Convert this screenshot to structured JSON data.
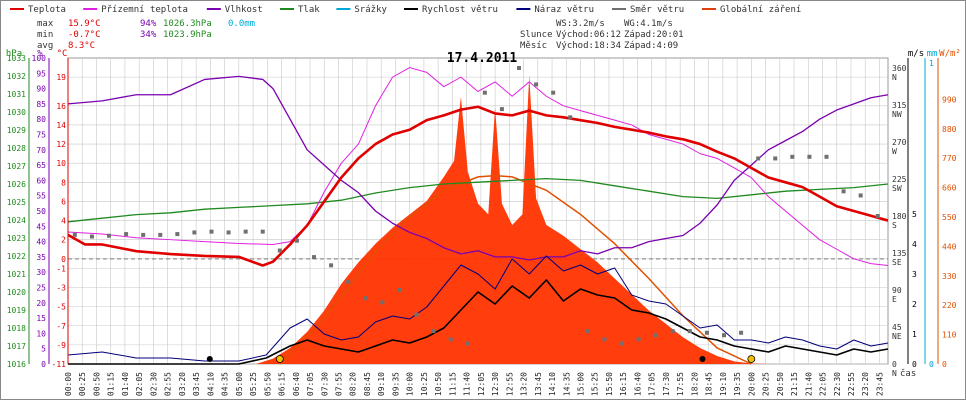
{
  "legend": [
    {
      "label": "Teplota",
      "color": "#e00000"
    },
    {
      "label": "Přízemní teplota",
      "color": "#e020e0"
    },
    {
      "label": "Vlhkost",
      "color": "#7a00b0"
    },
    {
      "label": "Tlak",
      "color": "#208a20"
    },
    {
      "label": "Srážky",
      "color": "#00a8d8"
    },
    {
      "label": "Rychlost větru",
      "color": "#000000"
    },
    {
      "label": "Náraz větru",
      "color": "#00007a"
    },
    {
      "label": "Směr větru",
      "color": "#707070"
    },
    {
      "label": "Globální záření",
      "color": "#e04010"
    }
  ],
  "stats": {
    "max_label": "max",
    "max_temp": "15.9°C",
    "max_hum": "94%",
    "max_press": "1026.3hPa",
    "rain": "0.0mm",
    "min_label": "min",
    "min_temp": "-0.7°C",
    "min_hum": "34%",
    "min_press": "1023.9hPa",
    "avg_label": "avg",
    "avg_temp": "8.3°C"
  },
  "wind_info": {
    "ws": "WS:3.2m/s",
    "wg": "WG:4.1m/s"
  },
  "sun": {
    "label": "Slunce",
    "rise": "Východ:06:12",
    "set": "Západ:20:01"
  },
  "moon": {
    "label": "Měsíc",
    "rise": "Východ:18:34",
    "set": "Západ:4:09"
  },
  "date_title": "17.4.2011",
  "axis_units": {
    "hpa": "hPa",
    "pct": "%",
    "degc": "°C",
    "ms": "m/s",
    "mm": "mm",
    "wm2": "W/m²",
    "time": "čas"
  },
  "colors": {
    "temp": "#e00000",
    "ground": "#e020e0",
    "hum": "#7a00b0",
    "press": "#208a20",
    "rain": "#00a8d8",
    "wind": "#000000",
    "gust": "#00007a",
    "dir": "#707070",
    "solar": "#ff3300",
    "solar_model": "#e05000",
    "grid": "#c8c8c8"
  },
  "chart_data": {
    "type": "line",
    "title": "17.4.2011",
    "x_time_labels": [
      "00:00",
      "00:25",
      "00:50",
      "01:15",
      "01:40",
      "02:05",
      "02:30",
      "02:55",
      "03:20",
      "03:45",
      "04:10",
      "04:35",
      "05:00",
      "05:25",
      "05:50",
      "06:15",
      "06:40",
      "07:05",
      "07:30",
      "07:55",
      "08:20",
      "08:45",
      "09:10",
      "09:35",
      "10:00",
      "10:25",
      "10:50",
      "11:15",
      "11:40",
      "12:05",
      "12:30",
      "12:55",
      "13:20",
      "13:45",
      "14:10",
      "14:35",
      "15:00",
      "15:25",
      "15:50",
      "16:15",
      "16:40",
      "17:05",
      "17:30",
      "17:55",
      "18:20",
      "18:45",
      "19:10",
      "19:35",
      "20:00",
      "20:25",
      "20:50",
      "21:15",
      "21:40",
      "22:05",
      "22:30",
      "22:55",
      "23:20",
      "23:45"
    ],
    "axes": {
      "pressure_hpa": {
        "range": [
          1016,
          1033
        ],
        "ticks": [
          1016,
          1017,
          1018,
          1019,
          1020,
          1021,
          1022,
          1023,
          1024,
          1025,
          1026,
          1027,
          1028,
          1029,
          1030,
          1031,
          1032,
          1033
        ]
      },
      "humidity_pct": {
        "range": [
          0,
          100
        ],
        "ticks": [
          0,
          5,
          10,
          15,
          20,
          25,
          30,
          35,
          40,
          45,
          50,
          55,
          60,
          65,
          70,
          75,
          80,
          85,
          90,
          95,
          100
        ]
      },
      "temperature_c": {
        "range": [
          -11,
          21
        ],
        "ticks": [
          -11,
          -9,
          -7,
          -5,
          -3,
          -1,
          0,
          2,
          4,
          6,
          8,
          10,
          12,
          14,
          16,
          19
        ]
      },
      "wind_dir_deg": {
        "ticks": [
          {
            "v": 0,
            "l": "0"
          },
          {
            "v": 45,
            "l": "45"
          },
          {
            "v": 90,
            "l": "90"
          },
          {
            "v": 135,
            "l": "135"
          },
          {
            "v": 180,
            "l": "180"
          },
          {
            "v": 225,
            "l": "225"
          },
          {
            "v": 270,
            "l": "270"
          },
          {
            "v": 315,
            "l": "315"
          },
          {
            "v": 360,
            "l": "360"
          }
        ],
        "compass": [
          "N",
          "NE",
          "E",
          "SE",
          "S",
          "SW",
          "W",
          "NW",
          "N"
        ]
      },
      "wind_ms": {
        "range": [
          0,
          5
        ],
        "ticks": [
          0,
          1,
          2,
          3,
          4,
          5
        ]
      },
      "rain_mm": {
        "ticks": [
          0,
          1
        ]
      },
      "solar_wm2": {
        "range": [
          0,
          1100
        ],
        "ticks": [
          0,
          110,
          220,
          330,
          440,
          550,
          660,
          770,
          880,
          990
        ]
      }
    },
    "series": [
      {
        "name": "Teplota",
        "unit": "°C",
        "x_hours": [
          0,
          0.5,
          1,
          2,
          3,
          4,
          5,
          5.7,
          6,
          6.5,
          7,
          7.5,
          8,
          8.5,
          9,
          9.5,
          10,
          10.5,
          11,
          11.5,
          12,
          12.5,
          13,
          13.5,
          14,
          14.5,
          15,
          15.5,
          16,
          16.5,
          17,
          17.5,
          18,
          18.5,
          19,
          19.5,
          20,
          20.5,
          21,
          21.5,
          22,
          22.5,
          23,
          23.5,
          24
        ],
        "values": [
          2.5,
          1.5,
          1.5,
          0.8,
          0.5,
          0.3,
          0.2,
          -0.7,
          -0.3,
          1.5,
          3.5,
          6.0,
          8.5,
          10.5,
          12.0,
          13.0,
          13.5,
          14.5,
          15.0,
          15.6,
          15.9,
          15.2,
          15.0,
          15.5,
          15.0,
          14.8,
          14.5,
          14.2,
          13.8,
          13.5,
          13.2,
          12.8,
          12.5,
          12.0,
          11.2,
          10.5,
          9.5,
          8.5,
          8.0,
          7.5,
          6.5,
          5.5,
          5.0,
          4.5,
          4.0
        ]
      },
      {
        "name": "Přízemní teplota",
        "unit": "°C",
        "x_hours": [
          0,
          1,
          2,
          3,
          4,
          5,
          6,
          6.5,
          7,
          7.5,
          8,
          8.5,
          9,
          9.5,
          10,
          10.5,
          11,
          11.5,
          12,
          12.5,
          13,
          13.5,
          14,
          14.5,
          15,
          15.5,
          16,
          16.5,
          17,
          17.5,
          18,
          18.5,
          19,
          19.5,
          20,
          20.5,
          21,
          21.5,
          22,
          22.5,
          23,
          23.5,
          24
        ],
        "values": [
          2.8,
          2.6,
          2.2,
          2.0,
          1.8,
          1.6,
          1.5,
          1.8,
          3.5,
          7.0,
          10.0,
          12.0,
          16.0,
          19.0,
          20.0,
          19.5,
          18.0,
          19.0,
          17.5,
          18.5,
          17.0,
          18.5,
          17.0,
          16.0,
          15.5,
          15.0,
          14.5,
          14.0,
          13.0,
          12.5,
          12.0,
          11.0,
          10.5,
          9.5,
          8.5,
          6.5,
          5.0,
          3.5,
          2.0,
          1.0,
          0.0,
          -0.5,
          -0.7
        ]
      },
      {
        "name": "Vlhkost",
        "unit": "%",
        "x_hours": [
          0,
          1,
          2,
          3,
          4,
          5,
          5.7,
          6,
          6.5,
          7,
          7.5,
          8,
          8.5,
          9,
          9.5,
          10,
          10.5,
          11,
          11.5,
          12,
          12.5,
          13,
          13.5,
          14,
          14.5,
          15,
          15.5,
          16,
          16.5,
          17,
          17.5,
          18,
          18.5,
          19,
          19.5,
          20,
          20.5,
          21,
          21.5,
          22,
          22.5,
          23,
          23.5,
          24
        ],
        "values": [
          85,
          86,
          88,
          88,
          93,
          94,
          93,
          90,
          80,
          70,
          65,
          60,
          56,
          50,
          46,
          43,
          41,
          38,
          36,
          37,
          35,
          35,
          34,
          35,
          35,
          37,
          36,
          38,
          38,
          40,
          41,
          42,
          46,
          52,
          60,
          65,
          70,
          73,
          76,
          80,
          83,
          85,
          87,
          88
        ]
      },
      {
        "name": "Tlak",
        "unit": "hPa",
        "x_hours": [
          0,
          1,
          2,
          3,
          4,
          5,
          6,
          7,
          8,
          9,
          10,
          11,
          12,
          13,
          14,
          15,
          16,
          17,
          18,
          19,
          20,
          21,
          22,
          23,
          24
        ],
        "values": [
          1023.9,
          1024.1,
          1024.3,
          1024.4,
          1024.6,
          1024.7,
          1024.8,
          1024.9,
          1025.1,
          1025.5,
          1025.8,
          1026.0,
          1026.1,
          1026.2,
          1026.3,
          1026.2,
          1025.9,
          1025.6,
          1025.3,
          1025.2,
          1025.4,
          1025.6,
          1025.7,
          1025.8,
          1026.0
        ]
      },
      {
        "name": "Rychlost větru",
        "unit": "m/s",
        "x_hours": [
          0,
          1,
          2,
          3,
          4,
          5,
          5.8,
          6.5,
          7,
          7.5,
          8,
          8.5,
          9,
          9.5,
          10,
          10.5,
          11,
          11.5,
          12,
          12.5,
          13,
          13.5,
          14,
          14.5,
          15,
          15.5,
          16,
          16.5,
          17,
          17.5,
          18,
          18.5,
          19,
          19.5,
          20,
          20.5,
          21,
          21.5,
          22,
          22.5,
          23,
          23.5,
          24
        ],
        "values": [
          0,
          0,
          0,
          0,
          0,
          0,
          0.2,
          0.6,
          0.8,
          0.6,
          0.5,
          0.4,
          0.6,
          0.8,
          0.7,
          0.9,
          1.2,
          1.8,
          2.4,
          2.0,
          2.6,
          2.2,
          2.8,
          2.1,
          2.5,
          2.3,
          2.2,
          1.8,
          1.7,
          1.5,
          1.2,
          0.9,
          0.8,
          0.6,
          0.5,
          0.4,
          0.6,
          0.5,
          0.4,
          0.3,
          0.5,
          0.4,
          0.5
        ]
      },
      {
        "name": "Náraz větru",
        "unit": "m/s",
        "x_hours": [
          0,
          1,
          2,
          3,
          4,
          5,
          5.8,
          6.5,
          7,
          7.5,
          8,
          8.5,
          9,
          9.5,
          10,
          10.5,
          11,
          11.5,
          12,
          12.5,
          13,
          13.5,
          14,
          14.5,
          15,
          15.5,
          16,
          16.5,
          17,
          17.5,
          18,
          18.5,
          19,
          19.5,
          20,
          20.5,
          21,
          21.5,
          22,
          22.5,
          23,
          23.5,
          24
        ],
        "values": [
          0.3,
          0.4,
          0.2,
          0.2,
          0.1,
          0.1,
          0.3,
          1.2,
          1.5,
          1.0,
          0.8,
          0.9,
          1.4,
          1.6,
          1.5,
          1.9,
          2.6,
          3.3,
          3.0,
          2.5,
          3.5,
          3.0,
          3.6,
          3.1,
          3.3,
          3.0,
          3.2,
          2.3,
          2.1,
          2.0,
          1.6,
          1.2,
          1.3,
          0.8,
          0.8,
          0.7,
          0.9,
          0.8,
          0.6,
          0.5,
          0.8,
          0.6,
          0.7
        ]
      },
      {
        "name": "Směr větru",
        "unit": "deg",
        "x_hours": [
          0.2,
          0.7,
          1.2,
          1.7,
          2.2,
          2.7,
          3.2,
          3.7,
          4.2,
          4.7,
          5.2,
          5.7,
          6.2,
          6.7,
          7.2,
          7.7,
          8.2,
          8.7,
          9.2,
          9.7,
          10.2,
          10.7,
          11.2,
          11.7,
          12.2,
          12.7,
          13.2,
          13.7,
          14.2,
          14.7,
          15.2,
          15.7,
          16.2,
          16.7,
          17.2,
          17.7,
          18.2,
          18.7,
          19.2,
          19.7,
          20.2,
          20.7,
          21.2,
          21.7,
          22.2,
          22.7,
          23.2,
          23.7
        ],
        "values": [
          157,
          155,
          156,
          158,
          157,
          157,
          158,
          160,
          161,
          160,
          161,
          161,
          138,
          150,
          130,
          120,
          100,
          80,
          75,
          90,
          60,
          40,
          30,
          25,
          330,
          310,
          360,
          340,
          330,
          300,
          40,
          30,
          25,
          30,
          35,
          40,
          40,
          38,
          35,
          38,
          250,
          250,
          252,
          252,
          252,
          210,
          205,
          180
        ]
      },
      {
        "name": "Globální záření",
        "unit": "W/m²",
        "x_hours": [
          5.5,
          6,
          6.5,
          7,
          7.5,
          8,
          8.5,
          9,
          9.5,
          10,
          10.5,
          11,
          11.3,
          11.5,
          11.7,
          12,
          12.3,
          12.5,
          12.7,
          13,
          13.3,
          13.5,
          13.7,
          14,
          14.5,
          15,
          15.5,
          16,
          16.5,
          17,
          17.5,
          18,
          18.5,
          19,
          19.5,
          20,
          20.5
        ],
        "values": [
          0,
          20,
          60,
          120,
          200,
          300,
          380,
          450,
          510,
          560,
          610,
          700,
          760,
          1000,
          720,
          600,
          560,
          960,
          600,
          520,
          560,
          1080,
          620,
          520,
          480,
          430,
          380,
          320,
          260,
          200,
          150,
          100,
          60,
          30,
          10,
          2,
          0
        ]
      },
      {
        "name": "Globální záření (model)",
        "unit": "W/m²",
        "x_hours": [
          6.2,
          7,
          8,
          9,
          10,
          11,
          12,
          12.5,
          13,
          14,
          15,
          16,
          17,
          18,
          19,
          20
        ],
        "values": [
          0,
          100,
          250,
          420,
          550,
          650,
          700,
          705,
          700,
          650,
          560,
          450,
          320,
          180,
          60,
          0
        ]
      }
    ]
  }
}
